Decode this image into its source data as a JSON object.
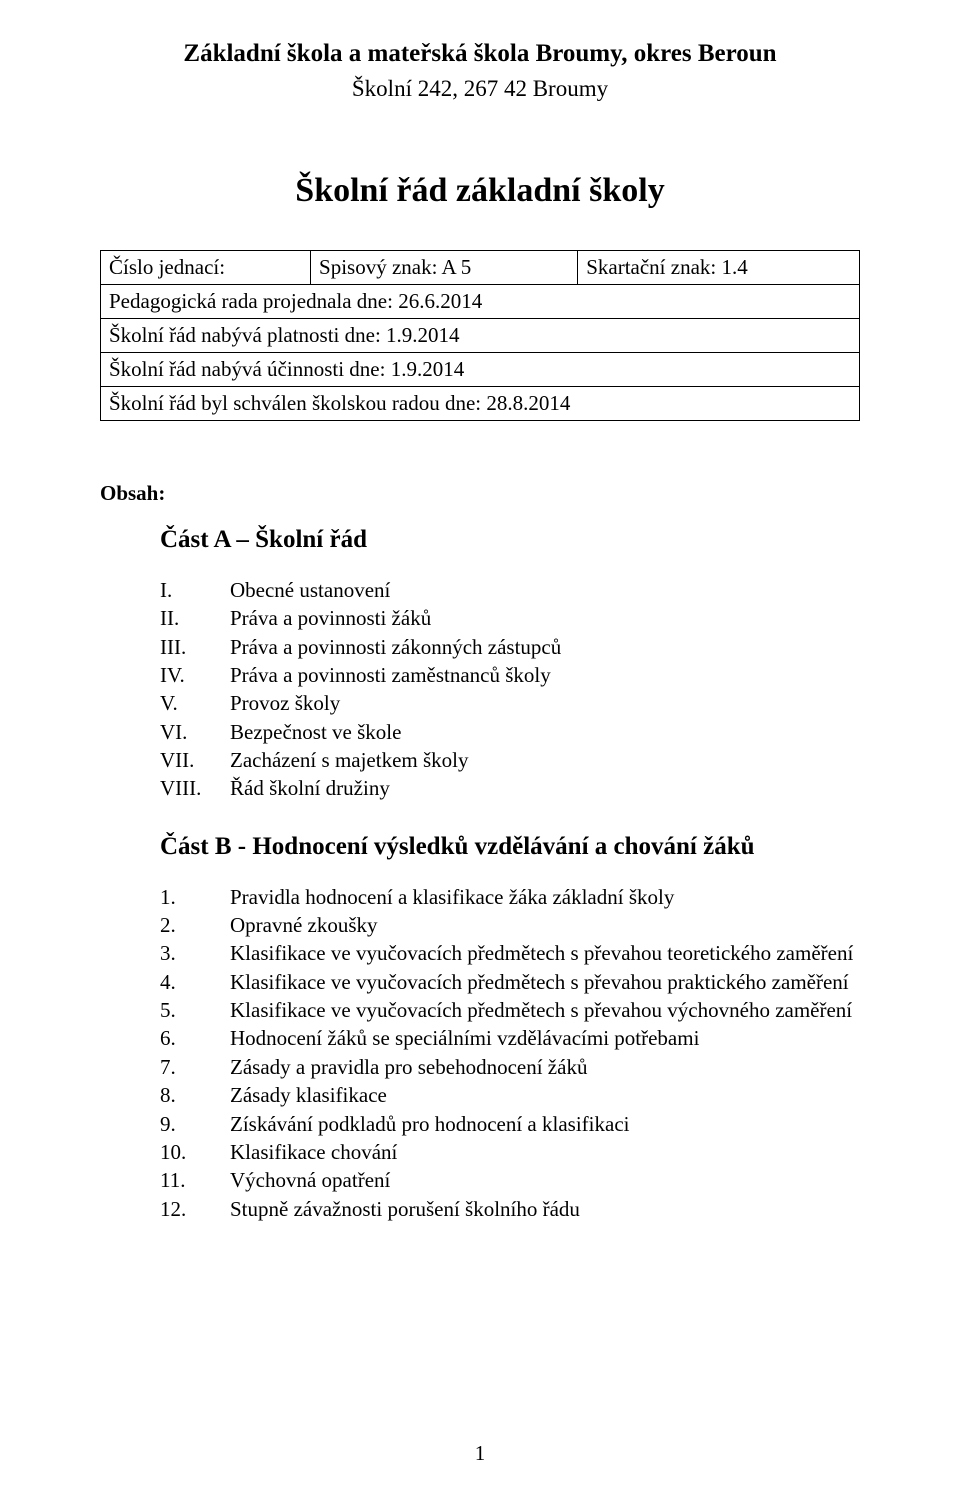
{
  "header": {
    "school_name": "Základní škola a mateřská škola Broumy, okres Beroun",
    "address": "Školní 242, 267 42 Broumy"
  },
  "title": "Školní řád základní školy",
  "meta_table": {
    "row1": {
      "c1": "Číslo jednací:",
      "c2": "Spisový znak:  A 5",
      "c3": "Skartační znak: 1.4"
    },
    "row2": "Pedagogická rada projednala dne: 26.6.2014",
    "row3": "Školní řád nabývá platnosti dne: 1.9.2014",
    "row4": "Školní řád nabývá účinnosti dne: 1.9.2014",
    "row5": "Školní řád byl schválen školskou radou dne: 28.8.2014"
  },
  "obsah_label": "Obsah:",
  "partA": {
    "title": "Část A – Školní řád",
    "items": [
      {
        "num": "I.",
        "text": "Obecné ustanovení"
      },
      {
        "num": "II.",
        "text": "Práva a povinnosti žáků"
      },
      {
        "num": "III.",
        "text": "Práva a povinnosti zákonných zástupců"
      },
      {
        "num": "IV.",
        "text": "Práva a povinnosti zaměstnanců školy"
      },
      {
        "num": "V.",
        "text": "Provoz školy"
      },
      {
        "num": "VI.",
        "text": "Bezpečnost ve škole"
      },
      {
        "num": "VII.",
        "text": "Zacházení s majetkem školy"
      },
      {
        "num": "VIII.",
        "text": "Řád školní družiny"
      }
    ]
  },
  "partB": {
    "title": "Část B - Hodnocení výsledků vzdělávání a chování žáků",
    "items": [
      {
        "num": "1.",
        "text": "Pravidla hodnocení a klasifikace žáka základní školy"
      },
      {
        "num": "2.",
        "text": "Opravné zkoušky"
      },
      {
        "num": "3.",
        "text": "Klasifikace ve vyučovacích předmětech s převahou teoretického zaměření"
      },
      {
        "num": "4.",
        "text": "Klasifikace ve vyučovacích předmětech s převahou praktického zaměření"
      },
      {
        "num": "5.",
        "text": "Klasifikace ve vyučovacích předmětech s převahou výchovného zaměření"
      },
      {
        "num": "6.",
        "text": "Hodnocení žáků se speciálními vzdělávacími potřebami"
      },
      {
        "num": "7.",
        "text": "Zásady a pravidla pro sebehodnocení žáků"
      },
      {
        "num": "8.",
        "text": "Zásady klasifikace"
      },
      {
        "num": "9.",
        "text": "Získávání podkladů pro hodnocení a klasifikaci"
      },
      {
        "num": "10.",
        "text": "Klasifikace chování"
      },
      {
        "num": "11.",
        "text": "Výchovná opatření"
      },
      {
        "num": "12.",
        "text": "Stupně závažnosti porušení školního řádu"
      }
    ]
  },
  "page_number": "1",
  "style": {
    "bg_color": "#ffffff",
    "text_color": "#000000",
    "border_color": "#000000",
    "font_family": "Times New Roman",
    "header_name_size_pt": 18,
    "header_addr_size_pt": 16,
    "title_size_pt": 24,
    "body_size_pt": 15,
    "part_title_size_pt": 18
  }
}
